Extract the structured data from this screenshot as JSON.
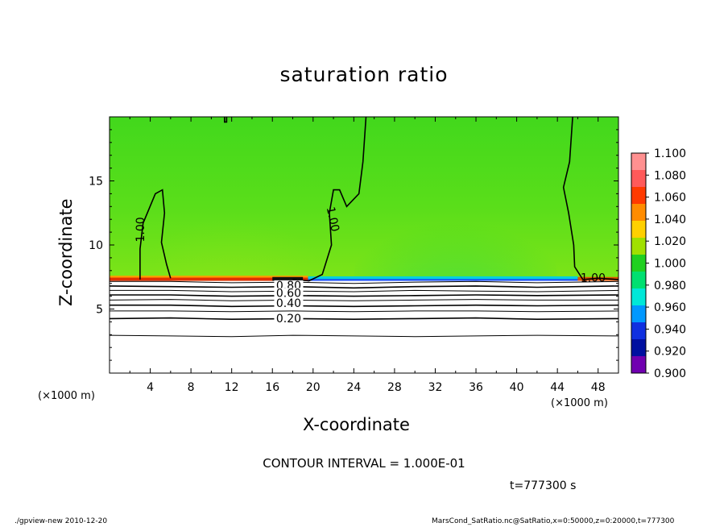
{
  "title": "saturation ratio",
  "contour_interval_text": "CONTOUR INTERVAL = 1.000E-01",
  "time_text": "t=777300 s",
  "footer_left": "./gpview-new   2010-12-20",
  "footer_right": "MarsCond_SatRatio.nc@SatRatio,x=0:50000,z=0:20000,t=777300",
  "x_unit": "(×1000 m)",
  "colors": {
    "supersat_green": "#22d422",
    "upper_green": "#7ce41a",
    "interface_blue": "#1a50ff",
    "hot_spot": "#ff6400"
  },
  "chart_data": {
    "type": "heatmap",
    "title": "saturation ratio",
    "xlabel": "X-coordinate",
    "ylabel": "Z-coordinate",
    "xlim": [
      0,
      50
    ],
    "ylim": [
      0,
      20
    ],
    "xticks": [
      4,
      8,
      12,
      16,
      20,
      24,
      28,
      32,
      36,
      40,
      44,
      48
    ],
    "yticks": [
      5,
      10,
      15
    ],
    "colorbar": {
      "levels": [
        "1.100",
        "1.080",
        "1.060",
        "1.040",
        "1.020",
        "1.000",
        "0.980",
        "0.960",
        "0.940",
        "0.920",
        "0.900"
      ],
      "colors": [
        "#ff9090",
        "#ff5a5a",
        "#ff3a00",
        "#ff8c00",
        "#ffd000",
        "#a0e000",
        "#20d020",
        "#00e070",
        "#00e8d8",
        "#0098ff",
        "#1030e0",
        "#0010a0",
        "#7000b0"
      ]
    },
    "contour_labels": [
      {
        "text": "1.00",
        "x": 3.1,
        "z": 11.2,
        "angle": -90
      },
      {
        "text": "1.00",
        "x": 21.9,
        "z": 12.0,
        "angle": 78
      },
      {
        "text": "1.00",
        "x": 47.5,
        "z": 7.4,
        "angle": 0
      },
      {
        "text": "0.80",
        "x": 17.6,
        "z": 6.8,
        "angle": 0
      },
      {
        "text": "0.60",
        "x": 17.6,
        "z": 6.2,
        "angle": 0
      },
      {
        "text": "0.40",
        "x": 17.6,
        "z": 5.4,
        "angle": 0
      },
      {
        "text": "0.20",
        "x": 17.6,
        "z": 4.2,
        "angle": 0
      }
    ],
    "contour_lines": [
      {
        "level": "1.00",
        "points": [
          [
            3.0,
            7.3
          ],
          [
            3.0,
            9.7
          ],
          [
            3.3,
            11.7
          ],
          [
            4.5,
            14.0
          ],
          [
            5.2,
            14.3
          ],
          [
            5.4,
            12.5
          ],
          [
            5.1,
            10.2
          ],
          [
            5.6,
            8.5
          ],
          [
            6.0,
            7.4
          ]
        ]
      },
      {
        "level": "1.00",
        "points": [
          [
            18.0,
            7.3
          ],
          [
            19.6,
            7.2
          ],
          [
            20.9,
            7.7
          ],
          [
            21.8,
            10.0
          ],
          [
            21.6,
            12.5
          ],
          [
            22.0,
            14.3
          ],
          [
            22.6,
            14.3
          ],
          [
            23.3,
            13.0
          ],
          [
            24.5,
            14.0
          ],
          [
            24.9,
            16.5
          ],
          [
            25.2,
            20.0
          ]
        ]
      },
      {
        "level": "1.00",
        "points": [
          [
            45.5,
            20.0
          ],
          [
            45.2,
            16.5
          ],
          [
            44.6,
            14.5
          ],
          [
            45.1,
            12.5
          ],
          [
            45.6,
            10.0
          ],
          [
            45.7,
            8.3
          ],
          [
            46.5,
            7.3
          ],
          [
            48.0,
            7.4
          ],
          [
            50.0,
            7.3
          ]
        ]
      },
      {
        "level": "1.00",
        "points": [
          [
            11.3,
            20.0
          ],
          [
            11.3,
            19.6
          ],
          [
            11.5,
            19.6
          ],
          [
            11.5,
            20.0
          ]
        ]
      },
      {
        "level": "0.90",
        "points": [
          [
            0,
            7.15
          ],
          [
            6,
            7.15
          ],
          [
            12,
            7.05
          ],
          [
            18,
            7.1
          ],
          [
            24,
            7.0
          ],
          [
            30,
            7.1
          ],
          [
            36,
            7.15
          ],
          [
            42,
            7.05
          ],
          [
            50,
            7.15
          ]
        ]
      },
      {
        "level": "0.80",
        "points": [
          [
            0,
            6.8
          ],
          [
            6,
            6.75
          ],
          [
            12,
            6.7
          ],
          [
            18,
            6.75
          ],
          [
            24,
            6.65
          ],
          [
            30,
            6.75
          ],
          [
            36,
            6.8
          ],
          [
            42,
            6.7
          ],
          [
            50,
            6.8
          ]
        ]
      },
      {
        "level": "0.70",
        "points": [
          [
            0,
            6.45
          ],
          [
            6,
            6.45
          ],
          [
            12,
            6.35
          ],
          [
            18,
            6.4
          ],
          [
            24,
            6.35
          ],
          [
            30,
            6.45
          ],
          [
            36,
            6.4
          ],
          [
            42,
            6.35
          ],
          [
            50,
            6.45
          ]
        ]
      },
      {
        "level": "0.60",
        "points": [
          [
            0,
            6.1
          ],
          [
            6,
            6.1
          ],
          [
            12,
            6.0
          ],
          [
            18,
            6.05
          ],
          [
            24,
            6.0
          ],
          [
            30,
            6.05
          ],
          [
            36,
            6.1
          ],
          [
            42,
            6.05
          ],
          [
            50,
            6.1
          ]
        ]
      },
      {
        "level": "0.50",
        "points": [
          [
            0,
            5.7
          ],
          [
            6,
            5.75
          ],
          [
            12,
            5.65
          ],
          [
            18,
            5.7
          ],
          [
            24,
            5.65
          ],
          [
            30,
            5.7
          ],
          [
            36,
            5.75
          ],
          [
            42,
            5.7
          ],
          [
            50,
            5.7
          ]
        ]
      },
      {
        "level": "0.40",
        "points": [
          [
            0,
            5.3
          ],
          [
            6,
            5.3
          ],
          [
            12,
            5.2
          ],
          [
            18,
            5.25
          ],
          [
            24,
            5.2
          ],
          [
            30,
            5.25
          ],
          [
            36,
            5.3
          ],
          [
            42,
            5.25
          ],
          [
            50,
            5.3
          ]
        ]
      },
      {
        "level": "0.30",
        "points": [
          [
            0,
            4.85
          ],
          [
            6,
            4.85
          ],
          [
            12,
            4.8
          ],
          [
            18,
            4.85
          ],
          [
            24,
            4.8
          ],
          [
            30,
            4.85
          ],
          [
            36,
            4.85
          ],
          [
            42,
            4.8
          ],
          [
            50,
            4.85
          ]
        ]
      },
      {
        "level": "0.20",
        "points": [
          [
            0,
            4.25
          ],
          [
            6,
            4.3
          ],
          [
            12,
            4.2
          ],
          [
            18,
            4.25
          ],
          [
            24,
            4.2
          ],
          [
            30,
            4.25
          ],
          [
            36,
            4.3
          ],
          [
            42,
            4.2
          ],
          [
            50,
            4.25
          ]
        ]
      },
      {
        "level": "0.10",
        "points": [
          [
            0,
            2.95
          ],
          [
            6,
            2.9
          ],
          [
            12,
            2.85
          ],
          [
            18,
            2.95
          ],
          [
            24,
            2.9
          ],
          [
            30,
            2.85
          ],
          [
            36,
            2.9
          ],
          [
            42,
            2.95
          ],
          [
            50,
            2.9
          ]
        ]
      }
    ]
  }
}
